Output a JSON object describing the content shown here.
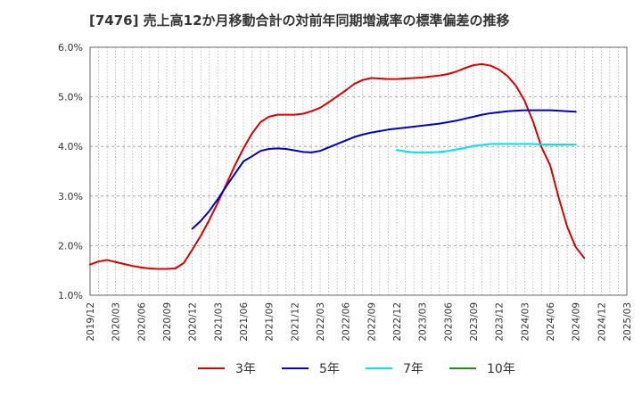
{
  "chart_data": {
    "type": "line",
    "title": "[7476]  売上高12か月移動合計の対前年同期増減率の標準偏差の推移",
    "xlabel": "",
    "ylabel": "",
    "ylim": [
      1.0,
      6.0
    ],
    "y_ticks": [
      "1.0%",
      "2.0%",
      "3.0%",
      "4.0%",
      "5.0%",
      "6.0%"
    ],
    "x_tick_labels": [
      "2019/12",
      "2020/03",
      "2020/06",
      "2020/09",
      "2020/12",
      "2021/03",
      "2021/06",
      "2021/09",
      "2021/12",
      "2022/03",
      "2022/06",
      "2022/09",
      "2022/12",
      "2023/03",
      "2023/06",
      "2023/09",
      "2023/12",
      "2024/03",
      "2024/06",
      "2024/09",
      "2024/12",
      "2025/03"
    ],
    "grid": true,
    "legend_position": "bottom",
    "series": [
      {
        "name": "3年",
        "color": "#dd0000",
        "points": [
          [
            "2019/12",
            1.62
          ],
          [
            "2020/01",
            1.68
          ],
          [
            "2020/02",
            1.71
          ],
          [
            "2020/03",
            1.67
          ],
          [
            "2020/04",
            1.63
          ],
          [
            "2020/05",
            1.59
          ],
          [
            "2020/06",
            1.56
          ],
          [
            "2020/07",
            1.54
          ],
          [
            "2020/08",
            1.53
          ],
          [
            "2020/09",
            1.53
          ],
          [
            "2020/10",
            1.54
          ],
          [
            "2020/11",
            1.65
          ],
          [
            "2020/12",
            1.92
          ],
          [
            "2021/01",
            2.2
          ],
          [
            "2021/02",
            2.52
          ],
          [
            "2021/03",
            2.87
          ],
          [
            "2021/04",
            3.24
          ],
          [
            "2021/05",
            3.62
          ],
          [
            "2021/06",
            3.96
          ],
          [
            "2021/07",
            4.26
          ],
          [
            "2021/08",
            4.49
          ],
          [
            "2021/09",
            4.6
          ],
          [
            "2021/10",
            4.64
          ],
          [
            "2021/11",
            4.64
          ],
          [
            "2021/12",
            4.64
          ],
          [
            "2022/01",
            4.66
          ],
          [
            "2022/02",
            4.71
          ],
          [
            "2022/03",
            4.78
          ],
          [
            "2022/04",
            4.89
          ],
          [
            "2022/05",
            5.01
          ],
          [
            "2022/06",
            5.13
          ],
          [
            "2022/07",
            5.26
          ],
          [
            "2022/08",
            5.34
          ],
          [
            "2022/09",
            5.38
          ],
          [
            "2022/10",
            5.37
          ],
          [
            "2022/11",
            5.36
          ],
          [
            "2022/12",
            5.36
          ],
          [
            "2023/01",
            5.37
          ],
          [
            "2023/02",
            5.38
          ],
          [
            "2023/03",
            5.39
          ],
          [
            "2023/04",
            5.41
          ],
          [
            "2023/05",
            5.43
          ],
          [
            "2023/06",
            5.46
          ],
          [
            "2023/07",
            5.51
          ],
          [
            "2023/08",
            5.58
          ],
          [
            "2023/09",
            5.64
          ],
          [
            "2023/10",
            5.66
          ],
          [
            "2023/11",
            5.63
          ],
          [
            "2023/12",
            5.55
          ],
          [
            "2024/01",
            5.42
          ],
          [
            "2024/02",
            5.22
          ],
          [
            "2024/03",
            4.92
          ],
          [
            "2024/04",
            4.5
          ],
          [
            "2024/05",
            3.98
          ],
          [
            "2024/06",
            3.62
          ],
          [
            "2024/07",
            2.97
          ],
          [
            "2024/08",
            2.38
          ],
          [
            "2024/09",
            1.97
          ],
          [
            "2024/10",
            1.75
          ]
        ]
      },
      {
        "name": "5年",
        "color": "#0000cc",
        "points": [
          [
            "2020/12",
            2.34
          ],
          [
            "2021/01",
            2.5
          ],
          [
            "2021/02",
            2.7
          ],
          [
            "2021/03",
            2.94
          ],
          [
            "2021/04",
            3.2
          ],
          [
            "2021/05",
            3.45
          ],
          [
            "2021/06",
            3.7
          ],
          [
            "2021/07",
            3.8
          ],
          [
            "2021/08",
            3.91
          ],
          [
            "2021/09",
            3.95
          ],
          [
            "2021/10",
            3.96
          ],
          [
            "2021/11",
            3.95
          ],
          [
            "2021/12",
            3.92
          ],
          [
            "2022/01",
            3.89
          ],
          [
            "2022/02",
            3.88
          ],
          [
            "2022/03",
            3.91
          ],
          [
            "2022/04",
            3.98
          ],
          [
            "2022/05",
            4.05
          ],
          [
            "2022/06",
            4.12
          ],
          [
            "2022/07",
            4.19
          ],
          [
            "2022/08",
            4.24
          ],
          [
            "2022/09",
            4.28
          ],
          [
            "2022/10",
            4.31
          ],
          [
            "2022/11",
            4.34
          ],
          [
            "2022/12",
            4.36
          ],
          [
            "2023/01",
            4.38
          ],
          [
            "2023/02",
            4.4
          ],
          [
            "2023/03",
            4.42
          ],
          [
            "2023/04",
            4.44
          ],
          [
            "2023/05",
            4.46
          ],
          [
            "2023/06",
            4.49
          ],
          [
            "2023/07",
            4.52
          ],
          [
            "2023/08",
            4.56
          ],
          [
            "2023/09",
            4.6
          ],
          [
            "2023/10",
            4.64
          ],
          [
            "2023/11",
            4.67
          ],
          [
            "2023/12",
            4.69
          ],
          [
            "2024/01",
            4.71
          ],
          [
            "2024/02",
            4.72
          ],
          [
            "2024/03",
            4.73
          ],
          [
            "2024/04",
            4.73
          ],
          [
            "2024/05",
            4.73
          ],
          [
            "2024/06",
            4.73
          ],
          [
            "2024/07",
            4.72
          ],
          [
            "2024/08",
            4.71
          ],
          [
            "2024/09",
            4.7
          ]
        ]
      },
      {
        "name": "7年",
        "color": "#00e5e5",
        "points": [
          [
            "2022/12",
            3.93
          ],
          [
            "2023/01",
            3.9
          ],
          [
            "2023/02",
            3.88
          ],
          [
            "2023/03",
            3.88
          ],
          [
            "2023/04",
            3.88
          ],
          [
            "2023/05",
            3.89
          ],
          [
            "2023/06",
            3.91
          ],
          [
            "2023/07",
            3.94
          ],
          [
            "2023/08",
            3.97
          ],
          [
            "2023/09",
            4.01
          ],
          [
            "2023/10",
            4.03
          ],
          [
            "2023/11",
            4.05
          ],
          [
            "2023/12",
            4.05
          ],
          [
            "2024/01",
            4.05
          ],
          [
            "2024/02",
            4.05
          ],
          [
            "2024/03",
            4.05
          ],
          [
            "2024/04",
            4.05
          ],
          [
            "2024/05",
            4.04
          ],
          [
            "2024/06",
            4.04
          ],
          [
            "2024/07",
            4.04
          ],
          [
            "2024/08",
            4.04
          ],
          [
            "2024/09",
            4.04
          ]
        ]
      },
      {
        "name": "10年",
        "color": "#228b22",
        "points": []
      }
    ]
  }
}
